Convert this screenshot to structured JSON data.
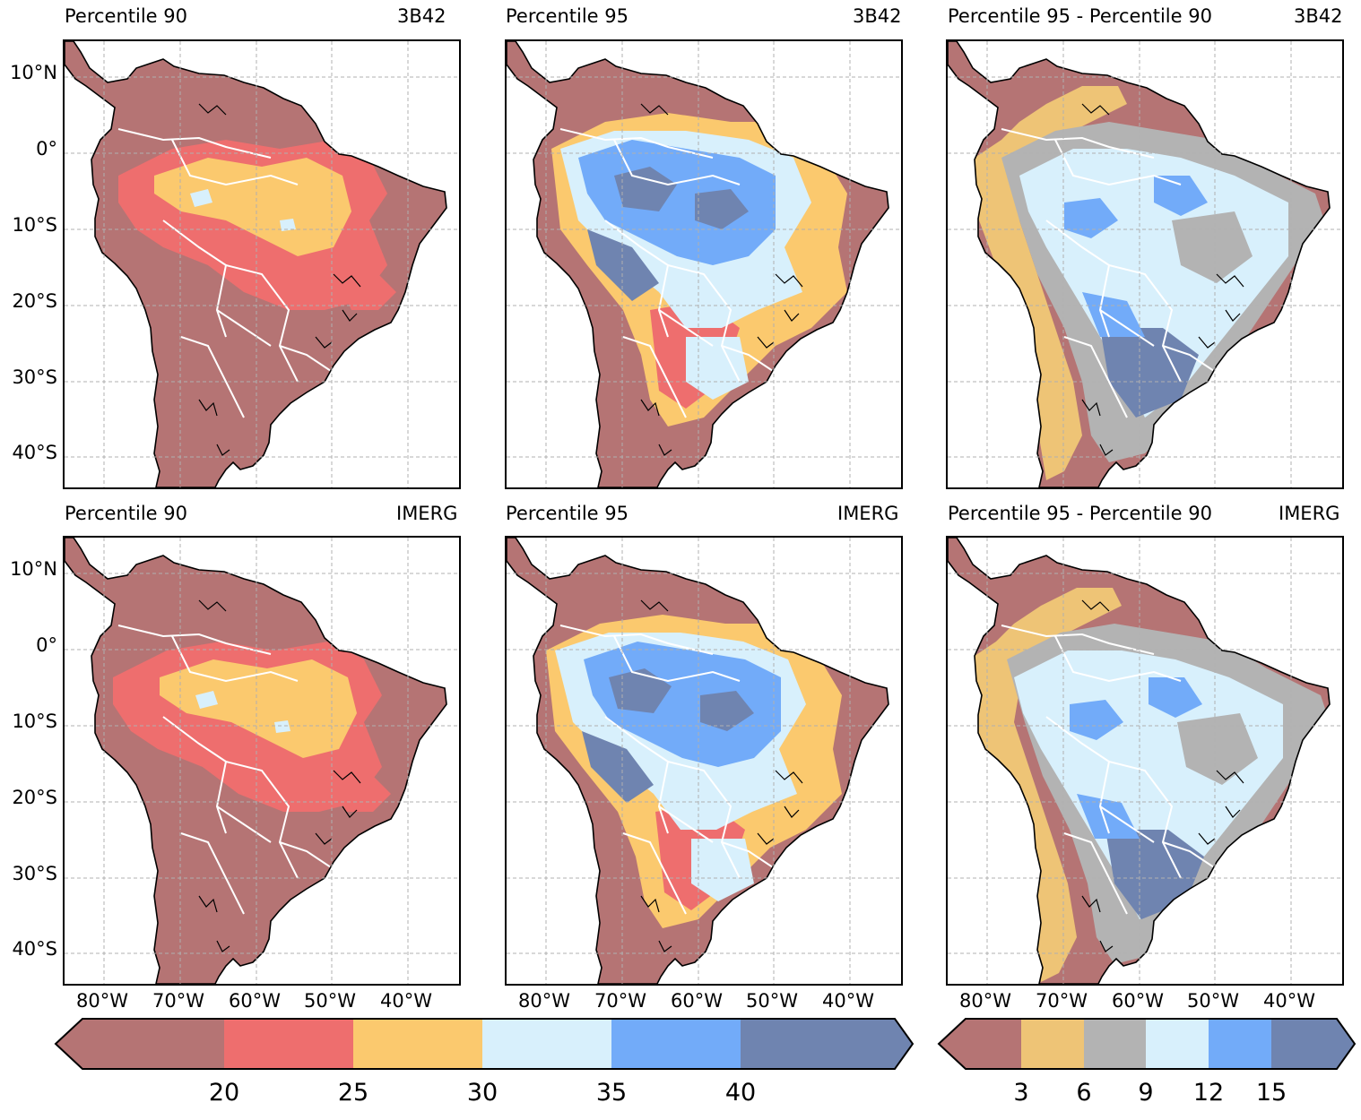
{
  "panels": [
    {
      "left_title": "Percentile 90",
      "right_title": "3B42",
      "scale": "abs",
      "variant": "p90"
    },
    {
      "left_title": "Percentile 95",
      "right_title": "3B42",
      "scale": "abs",
      "variant": "p95"
    },
    {
      "left_title": "Percentile 95 - Percentile 90",
      "right_title": "3B42",
      "scale": "diff",
      "variant": "diff"
    },
    {
      "left_title": "Percentile 90",
      "right_title": "IMERG",
      "scale": "abs",
      "variant": "p90"
    },
    {
      "left_title": "Percentile 95",
      "right_title": "IMERG",
      "scale": "abs",
      "variant": "p95"
    },
    {
      "left_title": "Percentile 95 - Percentile 90",
      "right_title": "IMERG",
      "scale": "diff",
      "variant": "diff"
    }
  ],
  "lat_labels": [
    "10°N",
    "0°",
    "10°S",
    "20°S",
    "30°S",
    "40°S"
  ],
  "lon_labels": [
    "80°W",
    "70°W",
    "60°W",
    "50°W",
    "40°W"
  ],
  "colorbar_abs": {
    "ticks": [
      "20",
      "25",
      "30",
      "35",
      "40"
    ],
    "colors": [
      "#b57474",
      "#ee6e6e",
      "#fbc96e",
      "#d8f0fc",
      "#72abf9",
      "#6f84b0"
    ],
    "extend": "both"
  },
  "colorbar_diff": {
    "ticks": [
      "3",
      "6",
      "9",
      "12",
      "15"
    ],
    "colors": [
      "#b57474",
      "#eec476",
      "#b3b3b3",
      "#d8f0fc",
      "#72abf9",
      "#6f84b0"
    ],
    "extend": "both"
  },
  "map_style": {
    "coastline": "#000000",
    "borders": "#ffffff",
    "gridlines": "#b0b0b0",
    "ocean": "#ffffff"
  }
}
